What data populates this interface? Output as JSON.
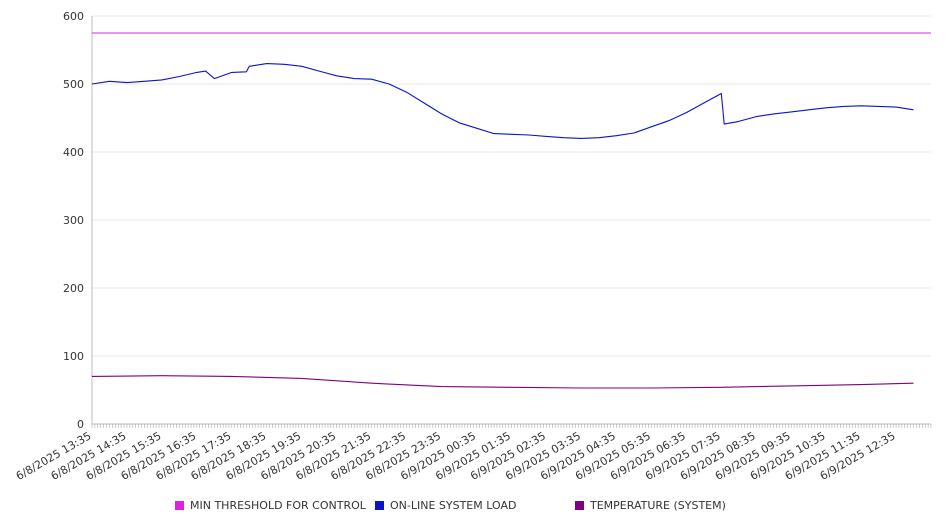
{
  "chart_data": {
    "type": "line",
    "title": "",
    "xlabel": "",
    "ylabel": "",
    "ylim": [
      0,
      600
    ],
    "y_ticks": [
      0,
      100,
      200,
      300,
      400,
      500,
      600
    ],
    "grid": true,
    "legend_position": "bottom",
    "x_tick_labels": [
      "6/8/2025 13:35",
      "6/8/2025 14:35",
      "6/8/2025 15:35",
      "6/8/2025 16:35",
      "6/8/2025 17:35",
      "6/8/2025 18:35",
      "6/8/2025 19:35",
      "6/8/2025 20:35",
      "6/8/2025 21:35",
      "6/8/2025 22:35",
      "6/8/2025 23:35",
      "6/9/2025 00:35",
      "6/9/2025 01:35",
      "6/9/2025 02:35",
      "6/9/2025 03:35",
      "6/9/2025 04:35",
      "6/9/2025 05:35",
      "6/9/2025 06:35",
      "6/9/2025 07:35",
      "6/9/2025 08:35",
      "6/9/2025 09:35",
      "6/9/2025 10:35",
      "6/9/2025 11:35",
      "6/9/2025 12:35"
    ],
    "series": [
      {
        "name": "MIN THRESHOLD FOR CONTROL",
        "color": "#e020e0",
        "x": [
          "6/8/2025 13:35",
          "6/9/2025 13:35"
        ],
        "values": [
          575,
          575
        ]
      },
      {
        "name": "ON-LINE SYSTEM LOAD",
        "color": "#0a14c8",
        "x": [
          "6/8/2025 13:35",
          "6/8/2025 14:05",
          "6/8/2025 14:35",
          "6/8/2025 15:05",
          "6/8/2025 15:35",
          "6/8/2025 16:05",
          "6/8/2025 16:35",
          "6/8/2025 16:50",
          "6/8/2025 17:05",
          "6/8/2025 17:35",
          "6/8/2025 18:00",
          "6/8/2025 18:05",
          "6/8/2025 18:35",
          "6/8/2025 19:05",
          "6/8/2025 19:35",
          "6/8/2025 20:05",
          "6/8/2025 20:35",
          "6/8/2025 21:05",
          "6/8/2025 21:35",
          "6/8/2025 22:05",
          "6/8/2025 22:35",
          "6/8/2025 23:05",
          "6/8/2025 23:35",
          "6/9/2025 00:05",
          "6/9/2025 00:35",
          "6/9/2025 01:05",
          "6/9/2025 01:35",
          "6/9/2025 02:05",
          "6/9/2025 02:35",
          "6/9/2025 03:05",
          "6/9/2025 03:35",
          "6/9/2025 04:05",
          "6/9/2025 04:35",
          "6/9/2025 05:05",
          "6/9/2025 05:35",
          "6/9/2025 06:05",
          "6/9/2025 06:35",
          "6/9/2025 07:05",
          "6/9/2025 07:35",
          "6/9/2025 07:40",
          "6/9/2025 08:05",
          "6/9/2025 08:35",
          "6/9/2025 09:05",
          "6/9/2025 09:35",
          "6/9/2025 10:05",
          "6/9/2025 10:35",
          "6/9/2025 11:05",
          "6/9/2025 11:35",
          "6/9/2025 12:05",
          "6/9/2025 12:35",
          "6/9/2025 13:05"
        ],
        "values": [
          500,
          504,
          502,
          504,
          506,
          511,
          517,
          519,
          508,
          517,
          518,
          526,
          530,
          529,
          526,
          519,
          512,
          508,
          507,
          500,
          488,
          472,
          456,
          443,
          435,
          427,
          426,
          425,
          423,
          421,
          420,
          421,
          424,
          428,
          437,
          446,
          458,
          472,
          486,
          441,
          445,
          452,
          456,
          459,
          462,
          465,
          467,
          468,
          467,
          466,
          462
        ]
      },
      {
        "name": "TEMPERATURE (SYSTEM)",
        "color": "#800080",
        "x": [
          "6/8/2025 13:35",
          "6/8/2025 15:35",
          "6/8/2025 17:35",
          "6/8/2025 19:35",
          "6/8/2025 21:35",
          "6/8/2025 23:35",
          "6/9/2025 01:35",
          "6/9/2025 03:35",
          "6/9/2025 05:35",
          "6/9/2025 07:35",
          "6/9/2025 09:35",
          "6/9/2025 11:35",
          "6/9/2025 13:05"
        ],
        "values": [
          70,
          71,
          70,
          67,
          60,
          55,
          54,
          53,
          53,
          54,
          56,
          58,
          60
        ]
      }
    ]
  }
}
